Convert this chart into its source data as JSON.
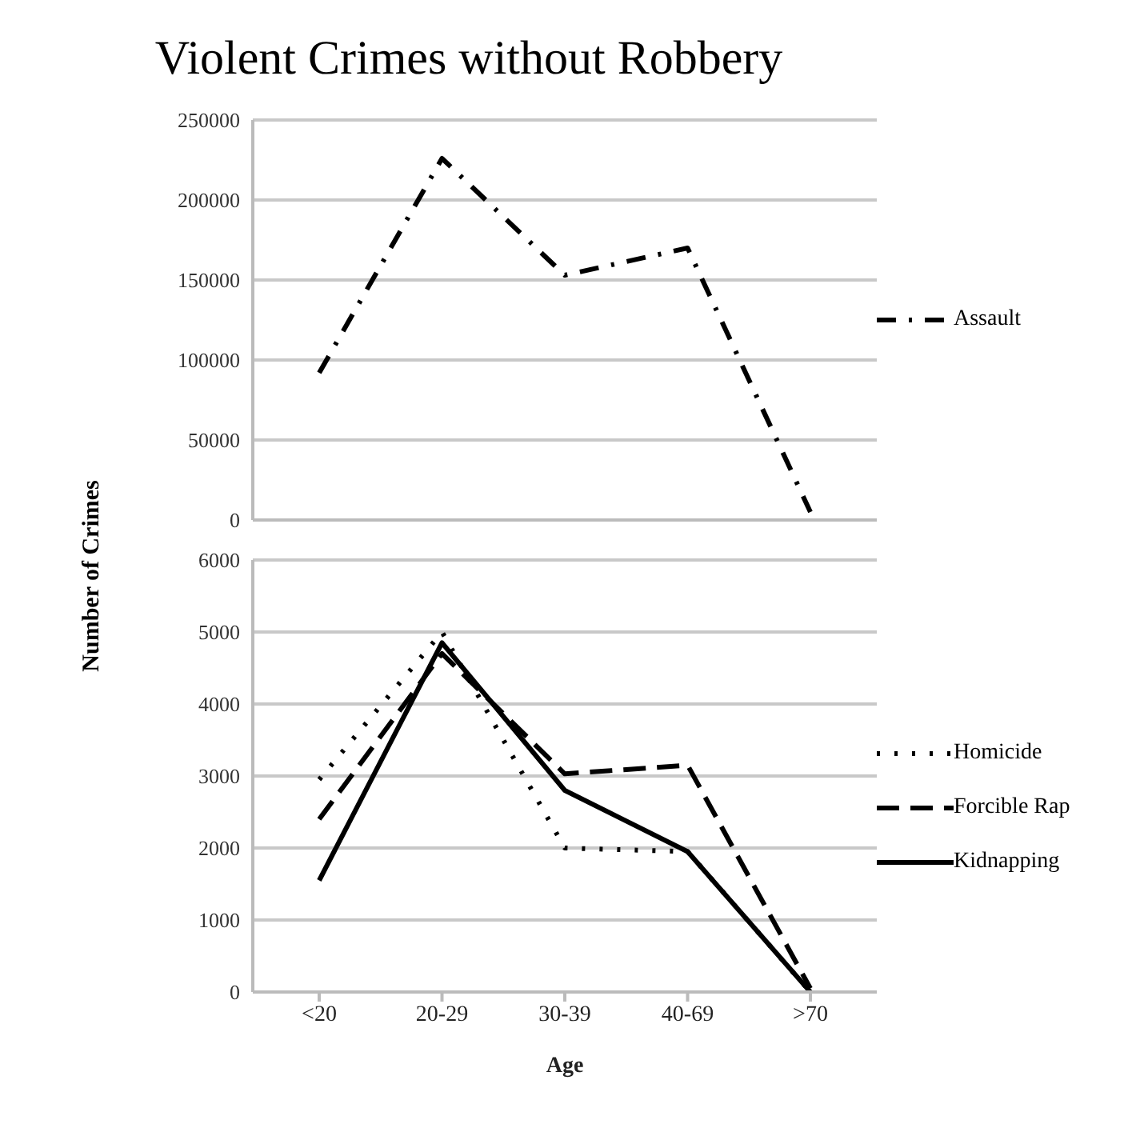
{
  "chart_data": [
    {
      "type": "line",
      "title": "Violent Crimes without Robbery",
      "categories": [
        null,
        null,
        null,
        null,
        null
      ],
      "series": [
        {
          "name": "Assault",
          "color": "#000000",
          "line_style": "dashdot",
          "values": [
            92000,
            226000,
            153000,
            170000,
            5000
          ]
        }
      ],
      "ylim": [
        0,
        250000
      ],
      "yticks": [
        0,
        50000,
        100000,
        150000,
        200000,
        250000
      ],
      "grid": "y",
      "legend": "right",
      "tick_labels": "y",
      "marker": "none"
    },
    {
      "type": "line",
      "xlabel": "Age",
      "ylabel": "Number of Crimes",
      "categories": [
        "<20",
        "20-29",
        "30-39",
        "40-69",
        ">70"
      ],
      "series": [
        {
          "name": "Homicide",
          "color": "#000000",
          "line_style": "dotted",
          "values": [
            2950,
            5000,
            2000,
            1950,
            0
          ]
        },
        {
          "name": "Forcible Rap",
          "color": "#000000",
          "line_style": "dashed",
          "values": [
            2400,
            4700,
            3030,
            3150,
            50
          ]
        },
        {
          "name": "Kidnapping",
          "color": "#000000",
          "line_style": "solid",
          "values": [
            1550,
            4850,
            2800,
            1950,
            0
          ]
        }
      ],
      "ylim": [
        0,
        6000
      ],
      "yticks": [
        0,
        1000,
        2000,
        3000,
        4000,
        5000,
        6000
      ],
      "grid": "y",
      "legend": "right",
      "marker": "none"
    }
  ]
}
